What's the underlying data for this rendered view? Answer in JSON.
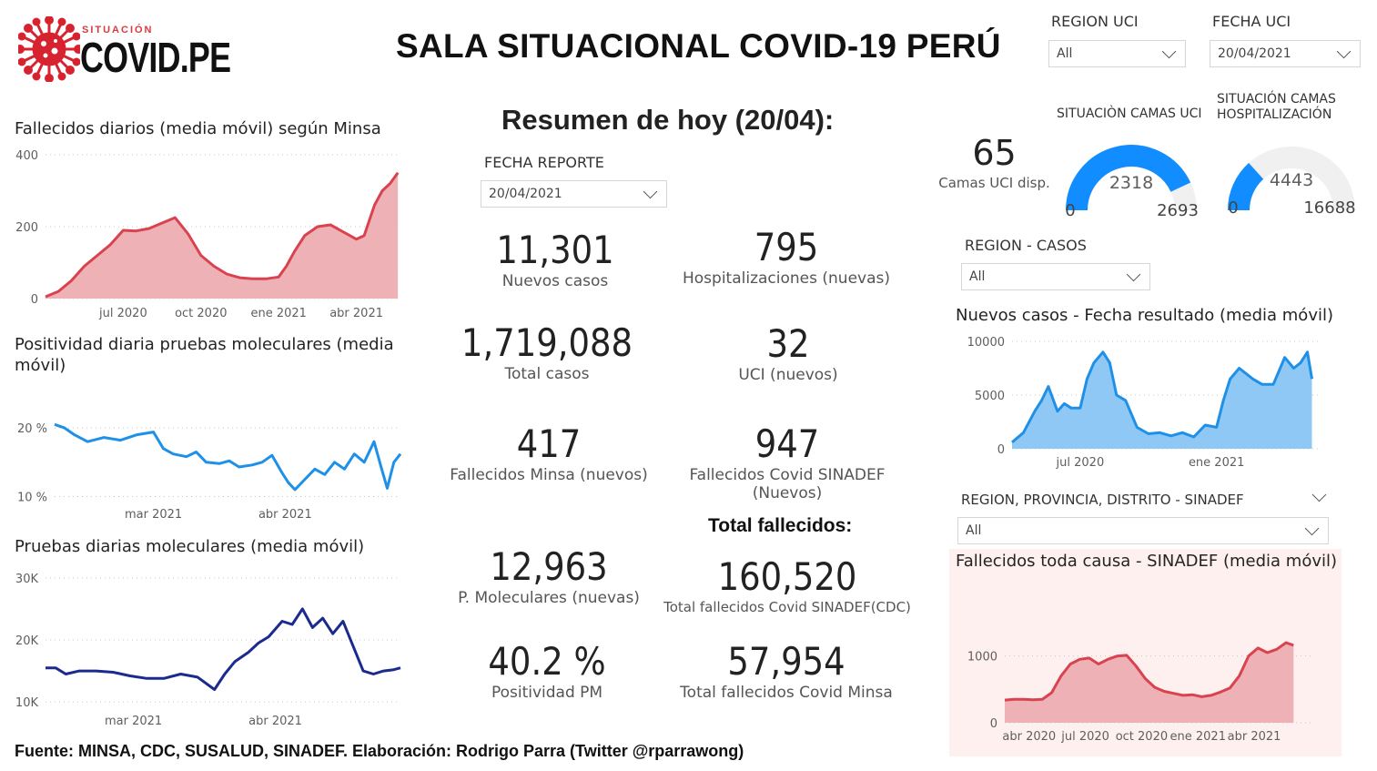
{
  "header": {
    "logo_small": "SITUACIÓN",
    "logo_big": "COVID.PE",
    "title": "SALA SITUACIONAL COVID-19 PERÚ"
  },
  "slicers": {
    "region_uci": {
      "label": "REGION UCI",
      "value": "All"
    },
    "fecha_uci": {
      "label": "FECHA UCI",
      "value": "20/04/2021"
    },
    "fecha_reporte": {
      "label": "FECHA REPORTE",
      "value": "20/04/2021"
    },
    "region_casos": {
      "label": "REGION - CASOS",
      "value": "All"
    },
    "region_sinadef": {
      "label": "REGION, PROVINCIA, DISTRITO - SINADEF",
      "value": "All"
    }
  },
  "summary": {
    "heading": "Resumen de hoy (20/04):",
    "total_heading": "Total fallecidos:",
    "kpis": {
      "nuevos_casos": {
        "value": "11,301",
        "label": "Nuevos casos"
      },
      "hospitalizaciones": {
        "value": "795",
        "label": "Hospitalizaciones (nuevas)"
      },
      "total_casos": {
        "value": "1,719,088",
        "label": "Total casos"
      },
      "uci": {
        "value": "32",
        "label": "UCI (nuevos)"
      },
      "fallecidos_minsa": {
        "value": "417",
        "label": "Fallecidos Minsa (nuevos)"
      },
      "fallecidos_sinadef": {
        "value": "947",
        "label": "Fallecidos Covid SINADEF (Nuevos)"
      },
      "pruebas": {
        "value": "12,963",
        "label": "P. Moleculares (nuevas)"
      },
      "total_sinadef": {
        "value": "160,520",
        "label": "Total fallecidos Covid SINADEF(CDC)"
      },
      "positividad": {
        "value": "40.2 %",
        "label": "Positividad PM"
      },
      "total_minsa": {
        "value": "57,954",
        "label": "Total fallecidos Covid Minsa"
      }
    }
  },
  "camas": {
    "uci_disp": {
      "value": "65",
      "label": "Camas UCI disp."
    },
    "uci_gauge": {
      "title": "SITUACIÒN CAMAS UCI",
      "value": 2318,
      "min": 0,
      "max": 2693,
      "value_text": "2318",
      "min_text": "0",
      "max_text": "2693"
    },
    "hosp_gauge": {
      "title_line1": "SITUACIÓN CAMAS",
      "title_line2": "HOSPITALIZACIÓN",
      "value": 4443,
      "min": 0,
      "max": 16688,
      "value_text": "4443",
      "min_text": "0",
      "max_text": "16688"
    }
  },
  "colors": {
    "red_line": "#d9434f",
    "red_fill": "#eeb2b6",
    "blue_line": "#1e90e8",
    "blue_fill": "#8fc8f5",
    "navy_line": "#1a2a8f",
    "gauge_blue": "#118dff",
    "gauge_gray": "#f0f0f0",
    "sinadef_bg": "#fdf0ee"
  },
  "footer": "Fuente: MINSA, CDC, SUSALUD, SINADEF. Elaboración: Rodrigo Parra (Twitter @rparrawong)",
  "chart_data": [
    {
      "id": "fallecidos",
      "type": "area",
      "title": "Fallecidos diarios (media móvil) según Minsa",
      "ylim": [
        0,
        400
      ],
      "yticks": [
        0,
        200,
        400
      ],
      "ytick_labels": [
        "0",
        "200",
        "400"
      ],
      "xlim": [
        0,
        13.7
      ],
      "xticks": [
        3.0,
        6.0,
        9.0,
        12.0
      ],
      "xtick_labels": [
        "jul 2020",
        "oct 2020",
        "ene 2021",
        "abr 2021"
      ],
      "x": [
        0.0,
        0.5,
        1.0,
        1.5,
        2.0,
        2.5,
        3.0,
        3.5,
        4.0,
        4.5,
        5.0,
        5.5,
        6.0,
        6.5,
        7.0,
        7.5,
        8.0,
        8.5,
        9.0,
        9.3,
        9.6,
        10.0,
        10.5,
        11.0,
        11.5,
        12.0,
        12.3,
        12.7,
        13.0,
        13.3,
        13.6
      ],
      "y": [
        5,
        20,
        50,
        90,
        120,
        150,
        190,
        188,
        195,
        210,
        225,
        180,
        120,
        90,
        68,
        58,
        55,
        55,
        60,
        90,
        130,
        175,
        200,
        205,
        185,
        165,
        175,
        260,
        300,
        320,
        350
      ]
    },
    {
      "id": "positividad",
      "type": "line",
      "title": "Positividad diaria pruebas moleculares (media móvil)",
      "ylim": [
        9,
        22
      ],
      "yticks": [
        10,
        20
      ],
      "ytick_labels": [
        "10 %",
        "20 %"
      ],
      "xlim": [
        0,
        10.5
      ],
      "xticks": [
        3.0,
        7.0
      ],
      "xtick_labels": [
        "mar 2021",
        "abr 2021"
      ],
      "x": [
        0.0,
        0.3,
        0.6,
        1.0,
        1.5,
        2.0,
        2.5,
        3.0,
        3.3,
        3.6,
        4.0,
        4.3,
        4.6,
        5.0,
        5.3,
        5.6,
        6.0,
        6.3,
        6.6,
        6.9,
        7.1,
        7.3,
        7.6,
        7.9,
        8.2,
        8.5,
        8.8,
        9.1,
        9.4,
        9.7,
        9.9,
        10.1,
        10.3,
        10.5
      ],
      "y": [
        20.5,
        20.0,
        19.0,
        18.0,
        18.6,
        18.2,
        19.0,
        19.4,
        17.0,
        16.2,
        15.8,
        16.5,
        15.0,
        14.8,
        15.2,
        14.3,
        14.6,
        15.0,
        16.0,
        13.5,
        12.0,
        11.0,
        12.5,
        14.0,
        13.2,
        15.0,
        14.0,
        16.2,
        15.0,
        18.0,
        14.5,
        11.2,
        15.0,
        16.2
      ]
    },
    {
      "id": "pruebas",
      "type": "line",
      "title": "Pruebas diarias moleculares (media móvil)",
      "ylim": [
        9000,
        31000
      ],
      "yticks": [
        10000,
        20000,
        30000
      ],
      "ytick_labels": [
        "10K",
        "20K",
        "30K"
      ],
      "xlim": [
        0,
        10.5
      ],
      "xticks": [
        2.6,
        6.8
      ],
      "xtick_labels": [
        "mar 2021",
        "abr 2021"
      ],
      "x": [
        0.0,
        0.3,
        0.6,
        1.0,
        1.5,
        2.0,
        2.5,
        3.0,
        3.5,
        4.0,
        4.5,
        5.0,
        5.3,
        5.6,
        6.0,
        6.3,
        6.6,
        7.0,
        7.3,
        7.6,
        7.9,
        8.2,
        8.5,
        8.8,
        9.1,
        9.4,
        9.7,
        10.0,
        10.3,
        10.5
      ],
      "y": [
        15500,
        15500,
        14500,
        15000,
        15000,
        14800,
        14200,
        13800,
        13800,
        14500,
        14000,
        12000,
        14500,
        16500,
        18000,
        19500,
        20500,
        23000,
        22500,
        25000,
        22000,
        23500,
        21000,
        23000,
        19000,
        15000,
        14500,
        15000,
        15200,
        15500
      ]
    },
    {
      "id": "nuevos_casos",
      "type": "area",
      "title": "Nuevos casos - Fecha resultado (media móvil)",
      "ylim": [
        0,
        10000
      ],
      "yticks": [
        0,
        5000,
        10000
      ],
      "ytick_labels": [
        "0",
        "5000",
        "10000"
      ],
      "xlim": [
        0,
        13.5
      ],
      "xticks": [
        3.0,
        9.0
      ],
      "xtick_labels": [
        "jul 2020",
        "ene 2021"
      ],
      "x": [
        0.0,
        0.5,
        1.0,
        1.3,
        1.6,
        2.0,
        2.3,
        2.6,
        3.0,
        3.3,
        3.6,
        4.0,
        4.3,
        4.6,
        5.0,
        5.5,
        6.0,
        6.5,
        7.0,
        7.5,
        8.0,
        8.5,
        9.0,
        9.3,
        9.6,
        10.0,
        10.3,
        10.6,
        11.0,
        11.5,
        12.0,
        12.4,
        12.7,
        13.0,
        13.2
      ],
      "y": [
        600,
        1500,
        3500,
        4500,
        5800,
        3500,
        4200,
        3800,
        3800,
        6500,
        8000,
        9000,
        8000,
        5000,
        4500,
        2000,
        1400,
        1500,
        1200,
        1500,
        1100,
        2200,
        2000,
        4500,
        6500,
        7500,
        7000,
        6500,
        6000,
        6000,
        8500,
        7500,
        8000,
        9000,
        6500
      ]
    },
    {
      "id": "sinadef",
      "type": "area",
      "title": "Fallecidos toda causa - SINADEF (media móvil)",
      "ylim": [
        0,
        1500
      ],
      "yticks": [
        0,
        1000
      ],
      "ytick_labels": [
        "0",
        "1000"
      ],
      "xlim": [
        0,
        16.5
      ],
      "xticks": [
        1.3,
        4.3,
        7.3,
        10.3,
        13.3
      ],
      "xtick_labels": [
        "abr 2020",
        "jul 2020",
        "oct 2020",
        "ene 2021",
        "abr 2021"
      ],
      "x": [
        0.0,
        0.5,
        1.0,
        1.5,
        2.0,
        2.5,
        3.0,
        3.5,
        4.0,
        4.5,
        5.0,
        5.5,
        6.0,
        6.5,
        7.0,
        7.5,
        8.0,
        8.5,
        9.0,
        9.5,
        10.0,
        10.5,
        11.0,
        11.5,
        12.0,
        12.5,
        13.0,
        13.5,
        14.0,
        14.5,
        15.0,
        15.4
      ],
      "y": [
        340,
        350,
        350,
        345,
        350,
        450,
        700,
        880,
        950,
        970,
        880,
        950,
        1000,
        1010,
        850,
        660,
        530,
        470,
        440,
        410,
        420,
        390,
        410,
        460,
        520,
        700,
        1000,
        1120,
        1050,
        1100,
        1200,
        1160
      ]
    }
  ]
}
